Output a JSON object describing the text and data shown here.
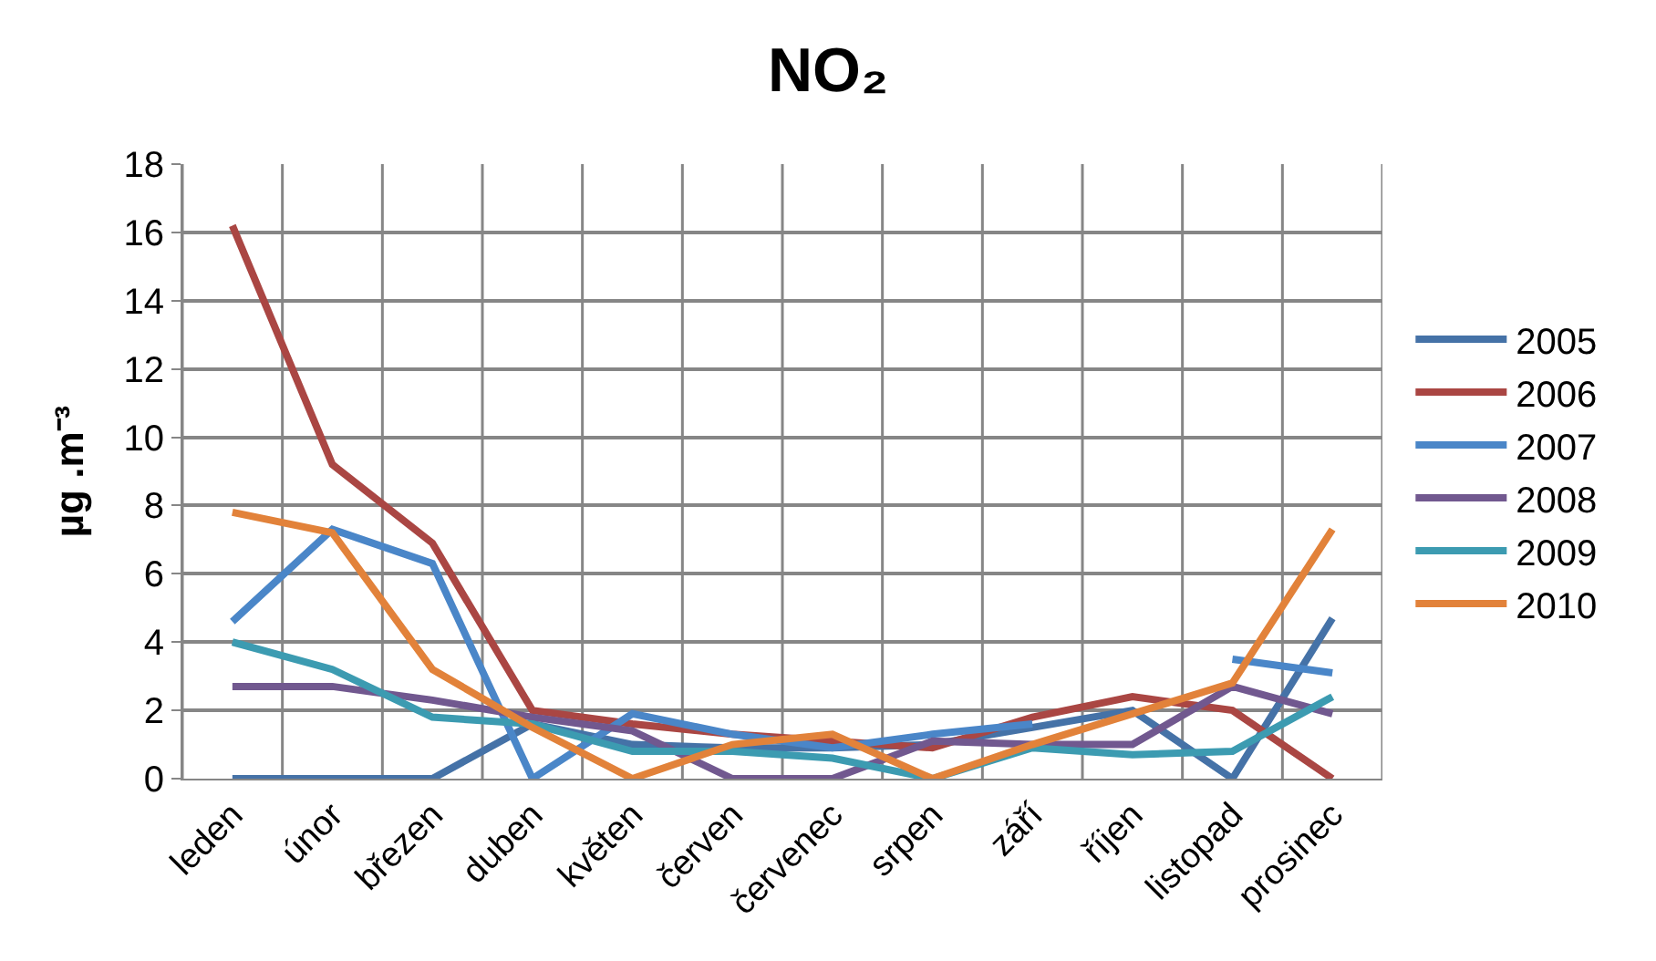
{
  "chart_data": {
    "type": "line",
    "title": "NO₂",
    "ylabel": "µg .m⁻³",
    "categories": [
      "leden",
      "únor",
      "březen",
      "duben",
      "květen",
      "červen",
      "červenec",
      "srpen",
      "září",
      "říjen",
      "listopad",
      "prosinec"
    ],
    "series": [
      {
        "name": "2005",
        "color": "#4572a7",
        "values": [
          0,
          0,
          0,
          1.6,
          1.0,
          0.9,
          0.9,
          1.0,
          1.5,
          2.0,
          0,
          4.7
        ]
      },
      {
        "name": "2006",
        "color": "#aa4643",
        "values": [
          16.2,
          9.2,
          6.9,
          2.0,
          1.6,
          1.3,
          1.1,
          0.9,
          1.8,
          2.4,
          2.0,
          0
        ]
      },
      {
        "name": "2007",
        "color": "#4a86c8",
        "values": [
          4.6,
          7.3,
          6.3,
          0,
          1.9,
          1.3,
          0.9,
          1.3,
          1.6,
          null,
          3.5,
          3.1
        ]
      },
      {
        "name": "2008",
        "color": "#71588f",
        "values": [
          2.7,
          2.7,
          2.3,
          1.8,
          1.4,
          0,
          0,
          1.1,
          1.0,
          1.0,
          2.7,
          1.9
        ]
      },
      {
        "name": "2009",
        "color": "#3c9bb1",
        "values": [
          4.0,
          3.2,
          1.8,
          1.6,
          0.8,
          0.8,
          0.6,
          0,
          0.9,
          0.7,
          0.8,
          2.4
        ]
      },
      {
        "name": "2010",
        "color": "#e2823a",
        "values": [
          7.8,
          7.2,
          3.2,
          1.5,
          0,
          1.0,
          1.3,
          0,
          1.0,
          1.9,
          2.8,
          7.3
        ]
      }
    ],
    "ylim": [
      0,
      18
    ],
    "yticks": [
      0,
      2,
      4,
      6,
      8,
      10,
      12,
      14,
      16,
      18
    ],
    "grid": true,
    "legend": "right",
    "marker": "none",
    "line_style": "solid"
  }
}
